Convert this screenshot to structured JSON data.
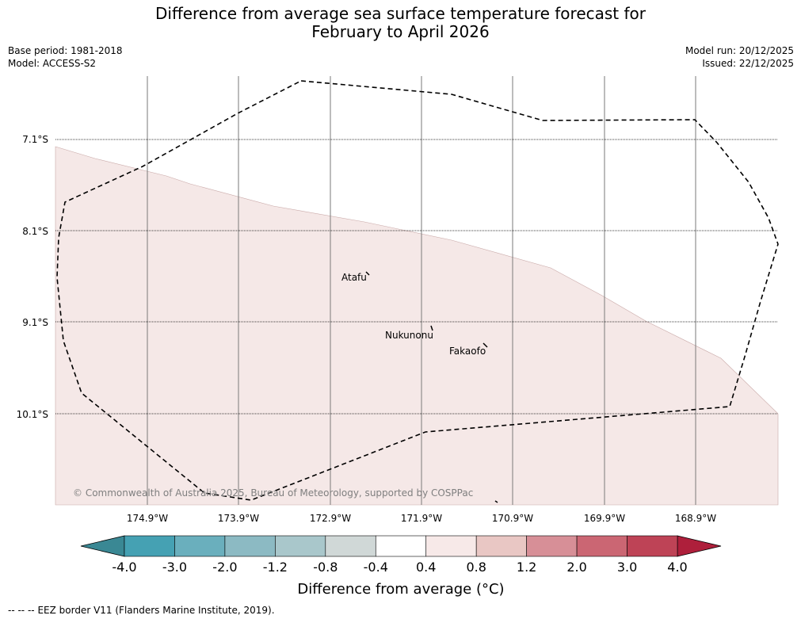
{
  "title": {
    "line1": "Difference from average sea surface temperature forecast for",
    "line2": "February to April 2026"
  },
  "meta": {
    "base_period": "Base period: 1981-2018",
    "model": "Model: ACCESS-S2",
    "model_run": "Model run: 20/12/2025",
    "issued": "Issued: 22/12/2025"
  },
  "map": {
    "lat_labels": [
      "7.1°S",
      "8.1°S",
      "9.1°S",
      "10.1°S"
    ],
    "lon_labels": [
      "174.9°W",
      "173.9°W",
      "172.9°W",
      "171.9°W",
      "170.9°W",
      "169.9°W",
      "168.9°W"
    ],
    "places": [
      "Atafu",
      "Nukunonu",
      "Fakaofo"
    ],
    "copyright": "© Commonwealth of Australia 2025, Bureau of Meteorology, supported by COSPPac",
    "anomaly_fill_color": "#f5e8e7"
  },
  "colorbar": {
    "ticks": [
      "-4.0",
      "-3.0",
      "-2.0",
      "-1.2",
      "-0.8",
      "-0.4",
      "0.4",
      "0.8",
      "1.2",
      "2.0",
      "3.0",
      "4.0"
    ],
    "colors": [
      "#45a1b3",
      "#6aafbd",
      "#8cbac3",
      "#a9c7cb",
      "#d0d8d7",
      "#ffffff",
      "#f7e9e8",
      "#e9c7c4",
      "#d78f97",
      "#cb6673",
      "#be4356"
    ],
    "under_color": "#3a8894",
    "over_color": "#ae1f3b",
    "label": "Difference from average (°C)"
  },
  "footer": {
    "legend_marker": "--  --  --",
    "legend_text": "EEZ border V11 (Flanders Marine Institute, 2019)."
  }
}
